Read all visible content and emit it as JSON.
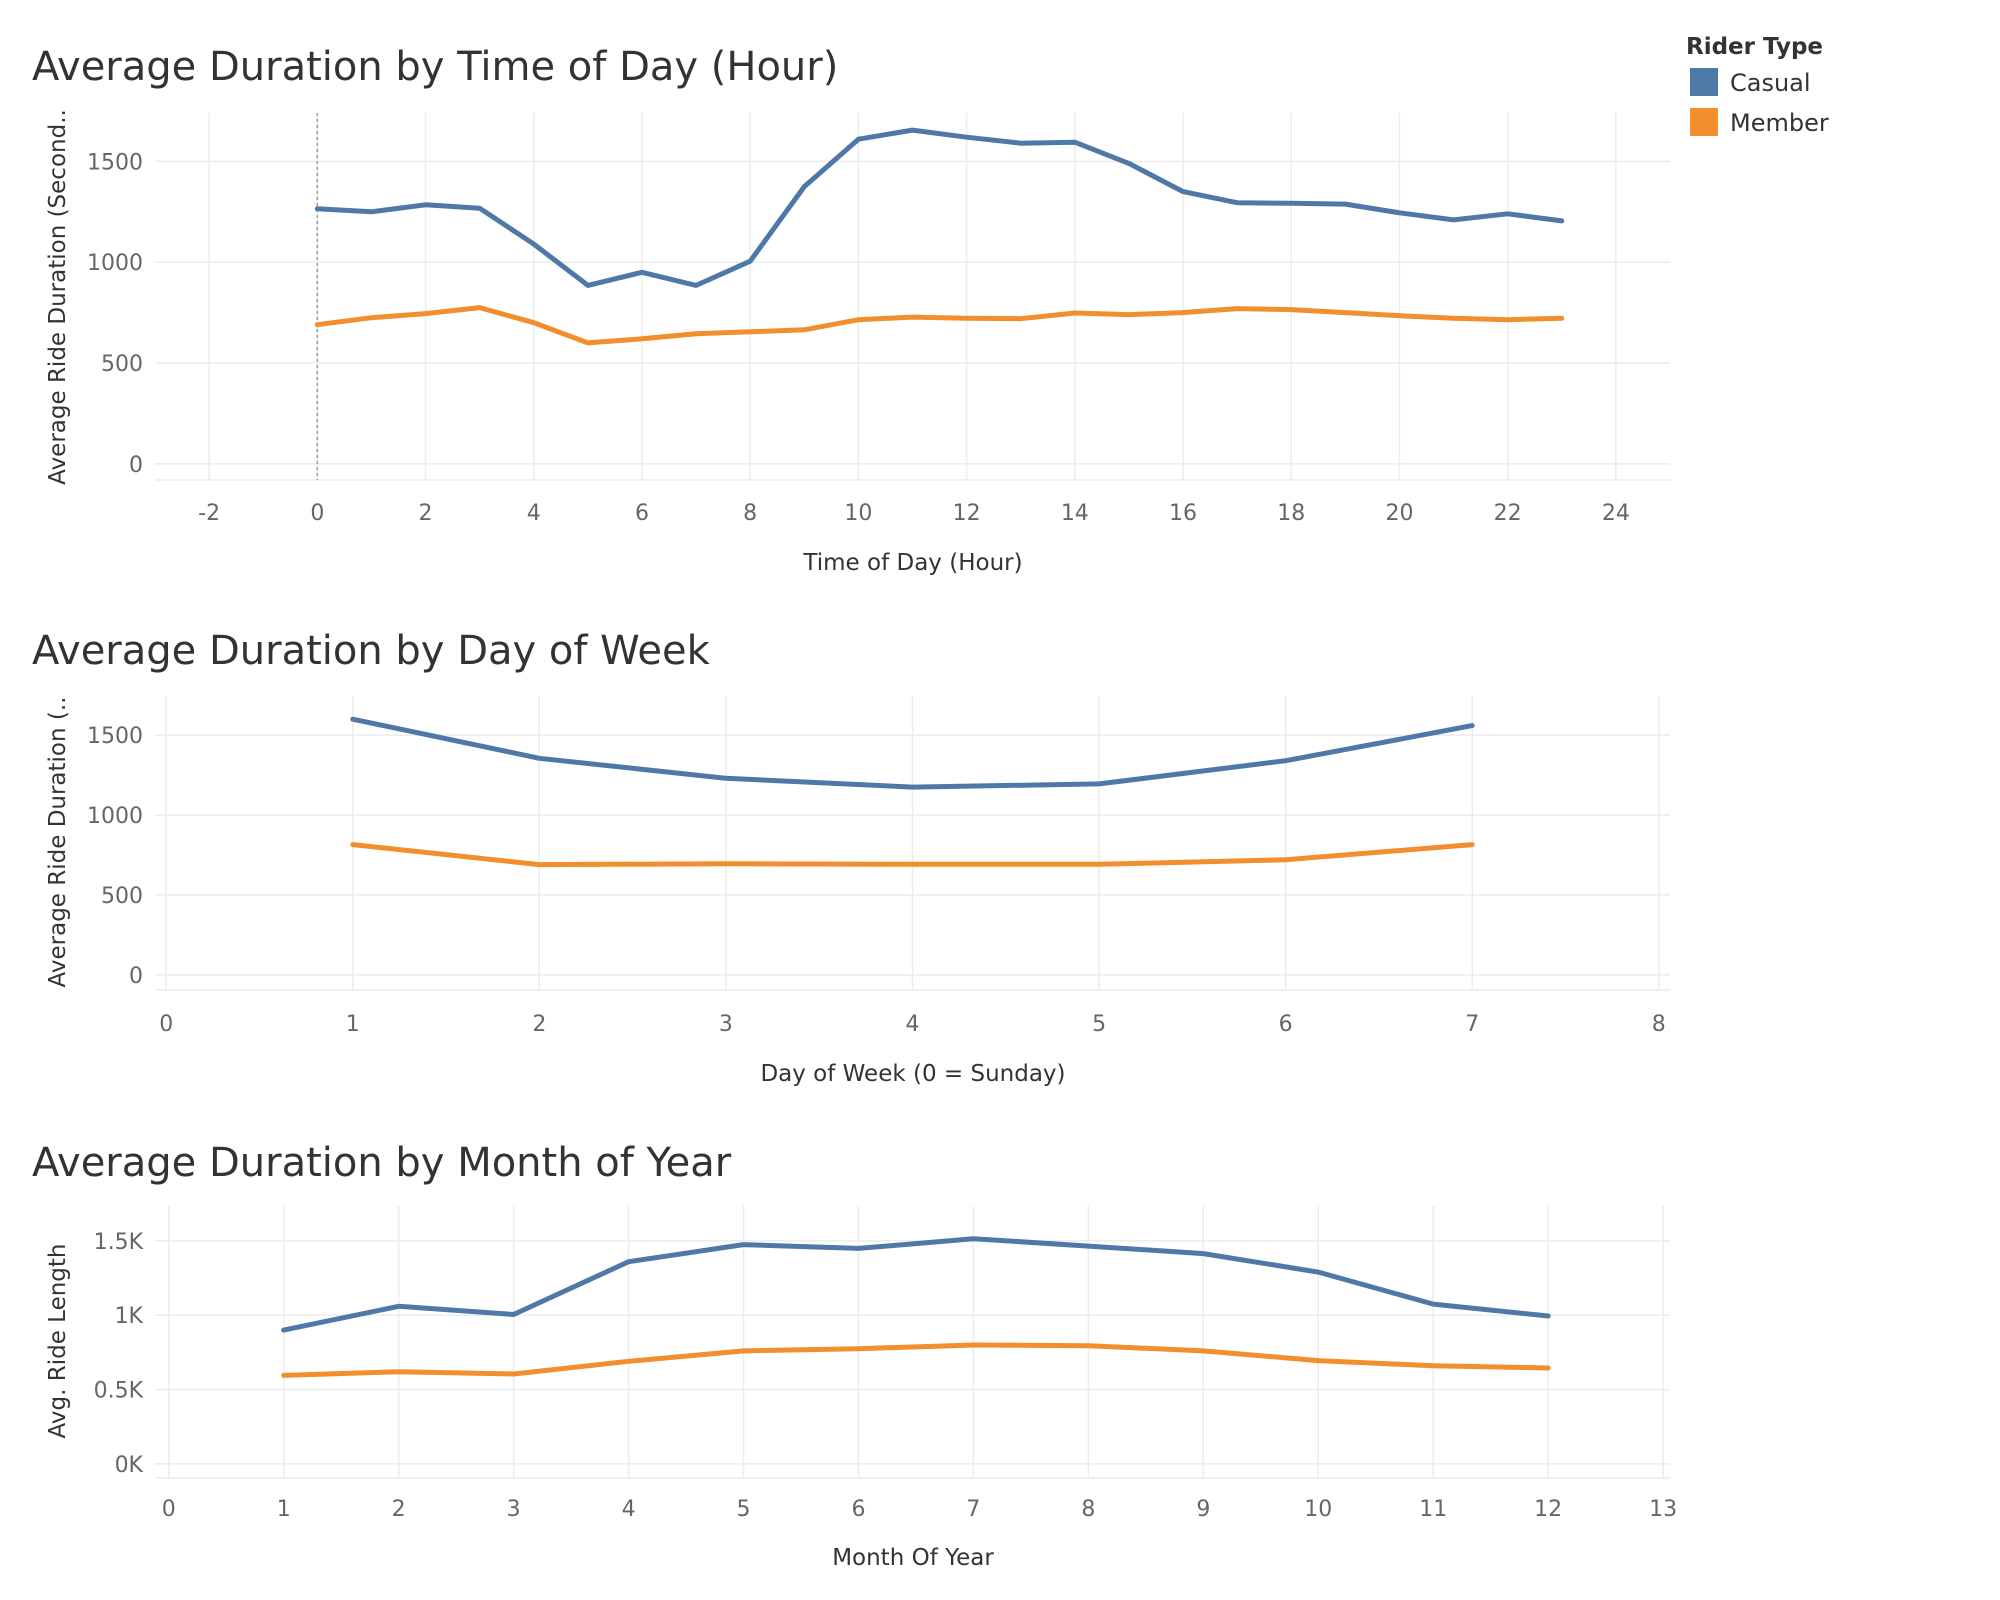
{
  "legend": {
    "title": "Rider Type",
    "items": [
      {
        "label": "Casual",
        "color": "#4e79a7"
      },
      {
        "label": "Member",
        "color": "#f28e2b"
      }
    ]
  },
  "chart_data": [
    {
      "type": "line",
      "title": "Average Duration by Time of Day (Hour)",
      "xlabel": "Time of Day (Hour)",
      "ylabel": "Average Ride Duration (Second..",
      "xlim": [
        -3,
        25
      ],
      "ylim": [
        -80,
        1740
      ],
      "xticks": [
        -2,
        0,
        2,
        4,
        6,
        8,
        10,
        12,
        14,
        16,
        18,
        20,
        22,
        24
      ],
      "xtick_labels": [
        "-2",
        "0",
        "2",
        "4",
        "6",
        "8",
        "10",
        "12",
        "14",
        "16",
        "18",
        "20",
        "22",
        "24"
      ],
      "yticks": [
        0,
        500,
        1000,
        1500
      ],
      "ytick_labels": [
        "0",
        "500",
        "1000",
        "1500"
      ],
      "reference_line_x": 0,
      "x": [
        0,
        1,
        2,
        3,
        4,
        5,
        6,
        7,
        8,
        9,
        10,
        11,
        12,
        13,
        14,
        15,
        16,
        17,
        18,
        19,
        20,
        21,
        22,
        23
      ],
      "series": [
        {
          "name": "Casual",
          "color": "#4e79a7",
          "values": [
            1265,
            1250,
            1285,
            1268,
            1090,
            885,
            950,
            885,
            1005,
            1375,
            1610,
            1655,
            1620,
            1590,
            1595,
            1490,
            1350,
            1295,
            1292,
            1288,
            1245,
            1210,
            1240,
            1205
          ]
        },
        {
          "name": "Member",
          "color": "#f28e2b",
          "values": [
            690,
            725,
            745,
            775,
            700,
            600,
            620,
            645,
            655,
            665,
            715,
            728,
            722,
            720,
            748,
            740,
            750,
            770,
            765,
            750,
            735,
            722,
            715,
            722
          ]
        }
      ]
    },
    {
      "type": "line",
      "title": "Average Duration by Day of Week",
      "xlabel": "Day of Week (0 = Sunday)",
      "ylabel": "Average Ride Duration (..",
      "xlim": [
        -0.06,
        8.06
      ],
      "ylim": [
        -95,
        1745
      ],
      "xticks": [
        0,
        1,
        2,
        3,
        4,
        5,
        6,
        7,
        8
      ],
      "xtick_labels": [
        "0",
        "1",
        "2",
        "3",
        "4",
        "5",
        "6",
        "7",
        "8"
      ],
      "yticks": [
        0,
        500,
        1000,
        1500
      ],
      "ytick_labels": [
        "0",
        "500",
        "1000",
        "1500"
      ],
      "x": [
        1,
        2,
        3,
        4,
        5,
        6,
        7
      ],
      "series": [
        {
          "name": "Casual",
          "color": "#4e79a7",
          "values": [
            1600,
            1355,
            1230,
            1175,
            1195,
            1340,
            1560
          ]
        },
        {
          "name": "Member",
          "color": "#f28e2b",
          "values": [
            815,
            690,
            695,
            692,
            692,
            720,
            815
          ]
        }
      ]
    },
    {
      "type": "line",
      "title": "Average Duration by Month of Year",
      "xlabel": "Month Of Year",
      "ylabel": "Avg. Ride Length",
      "xlim": [
        -0.12,
        13.06
      ],
      "ylim": [
        -95,
        1735
      ],
      "xticks": [
        0,
        1,
        2,
        3,
        4,
        5,
        6,
        7,
        8,
        9,
        10,
        11,
        12,
        13
      ],
      "xtick_labels": [
        "0",
        "1",
        "2",
        "3",
        "4",
        "5",
        "6",
        "7",
        "8",
        "9",
        "10",
        "11",
        "12",
        "13"
      ],
      "yticks": [
        0,
        500,
        1000,
        1500
      ],
      "ytick_labels": [
        "0K",
        "0.5K",
        "1K",
        "1.5K"
      ],
      "x": [
        1,
        2,
        3,
        4,
        5,
        6,
        7,
        8,
        9,
        10,
        11,
        12
      ],
      "series": [
        {
          "name": "Casual",
          "color": "#4e79a7",
          "values": [
            900,
            1060,
            1005,
            1360,
            1475,
            1450,
            1515,
            1465,
            1415,
            1290,
            1075,
            995
          ]
        },
        {
          "name": "Member",
          "color": "#f28e2b",
          "values": [
            595,
            620,
            605,
            690,
            760,
            775,
            800,
            795,
            760,
            695,
            660,
            645
          ]
        }
      ]
    }
  ]
}
